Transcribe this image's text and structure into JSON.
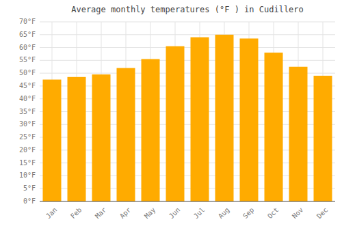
{
  "chart_data": {
    "type": "bar",
    "title": "Average monthly temperatures (°F ) in Cudillero",
    "categories": [
      "Jan",
      "Feb",
      "Mar",
      "Apr",
      "May",
      "Jun",
      "Jul",
      "Aug",
      "Sep",
      "Oct",
      "Nov",
      "Dec"
    ],
    "values": [
      47.5,
      48.5,
      49.5,
      52.0,
      55.5,
      60.5,
      64.0,
      65.0,
      63.5,
      58.0,
      52.5,
      49.0
    ],
    "color": "#FFAB00",
    "ylim": [
      0,
      70
    ],
    "yticks": [
      {
        "value": 0,
        "label": "0°F"
      },
      {
        "value": 5,
        "label": "5°F"
      },
      {
        "value": 10,
        "label": "10°F"
      },
      {
        "value": 15,
        "label": "15°F"
      },
      {
        "value": 20,
        "label": "20°F"
      },
      {
        "value": 25,
        "label": "25°F"
      },
      {
        "value": 30,
        "label": "30°F"
      },
      {
        "value": 35,
        "label": "35°F"
      },
      {
        "value": 40,
        "label": "40°F"
      },
      {
        "value": 45,
        "label": "45°F"
      },
      {
        "value": 50,
        "label": "50°F"
      },
      {
        "value": 55,
        "label": "55°F"
      },
      {
        "value": 60,
        "label": "60°F"
      },
      {
        "value": 65,
        "label": "65°F"
      },
      {
        "value": 70,
        "label": "70°F"
      }
    ],
    "grid": true
  }
}
